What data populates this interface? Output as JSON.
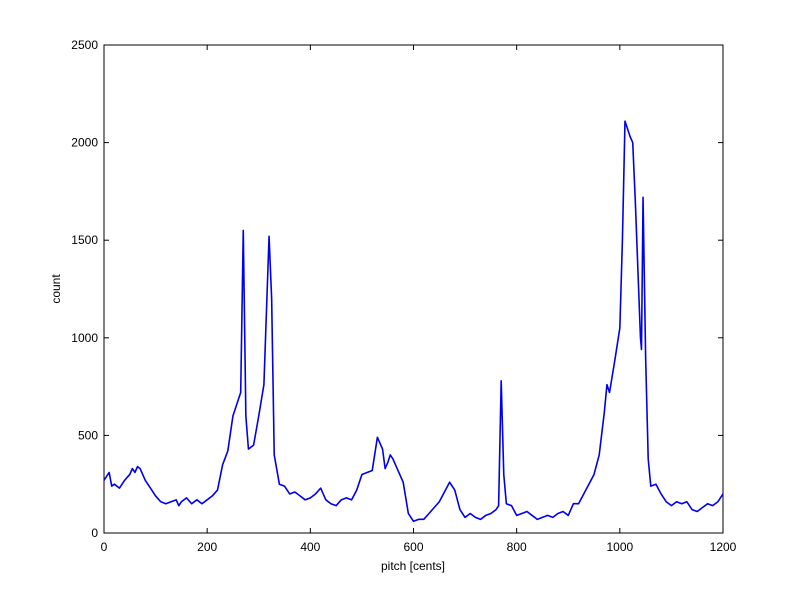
{
  "chart_data": {
    "type": "line",
    "xlabel": "pitch [cents]",
    "ylabel": "count",
    "xlim": [
      0,
      1200
    ],
    "xticks": [
      0,
      200,
      400,
      600,
      800,
      1000,
      1200
    ],
    "ylim": [
      0,
      2500
    ],
    "yticks": [
      0,
      500,
      1000,
      1500,
      2000,
      2500
    ],
    "x": [
      0,
      10,
      15,
      20,
      30,
      40,
      50,
      55,
      60,
      65,
      70,
      80,
      90,
      100,
      110,
      120,
      130,
      140,
      145,
      150,
      160,
      170,
      180,
      190,
      200,
      210,
      220,
      230,
      240,
      250,
      260,
      265,
      270,
      275,
      280,
      290,
      300,
      310,
      320,
      325,
      330,
      340,
      350,
      360,
      370,
      380,
      390,
      400,
      410,
      420,
      430,
      440,
      450,
      460,
      470,
      480,
      490,
      500,
      510,
      520,
      530,
      540,
      545,
      550,
      555,
      560,
      570,
      580,
      590,
      600,
      610,
      620,
      630,
      640,
      650,
      660,
      670,
      680,
      690,
      700,
      710,
      720,
      730,
      740,
      750,
      760,
      765,
      770,
      775,
      780,
      790,
      800,
      810,
      820,
      830,
      840,
      850,
      860,
      870,
      880,
      890,
      900,
      910,
      920,
      930,
      940,
      950,
      960,
      970,
      975,
      980,
      990,
      1000,
      1005,
      1010,
      1020,
      1025,
      1030,
      1040,
      1042,
      1045,
      1050,
      1055,
      1060,
      1070,
      1080,
      1090,
      1100,
      1110,
      1120,
      1130,
      1140,
      1150,
      1160,
      1170,
      1180,
      1190,
      1200
    ],
    "series": [
      {
        "name": "count",
        "color": "#0000ee",
        "values": [
          270,
          310,
          240,
          250,
          230,
          270,
          300,
          330,
          310,
          340,
          330,
          270,
          230,
          190,
          160,
          150,
          160,
          170,
          140,
          160,
          180,
          150,
          170,
          150,
          170,
          190,
          220,
          350,
          420,
          600,
          680,
          720,
          1550,
          600,
          430,
          450,
          600,
          760,
          1520,
          1200,
          400,
          250,
          240,
          200,
          210,
          190,
          170,
          180,
          200,
          230,
          170,
          150,
          140,
          170,
          180,
          170,
          220,
          300,
          310,
          320,
          490,
          430,
          330,
          360,
          400,
          380,
          320,
          260,
          100,
          60,
          70,
          70,
          100,
          130,
          160,
          210,
          260,
          220,
          120,
          80,
          100,
          80,
          70,
          90,
          100,
          120,
          140,
          780,
          300,
          150,
          140,
          90,
          100,
          110,
          90,
          70,
          80,
          90,
          80,
          100,
          110,
          90,
          150,
          150,
          200,
          250,
          300,
          400,
          620,
          760,
          720,
          880,
          1050,
          1500,
          2110,
          2030,
          2000,
          1700,
          1000,
          940,
          1720,
          900,
          380,
          240,
          250,
          200,
          160,
          140,
          160,
          150,
          160,
          120,
          110,
          130,
          150,
          140,
          160,
          200
        ]
      }
    ]
  }
}
